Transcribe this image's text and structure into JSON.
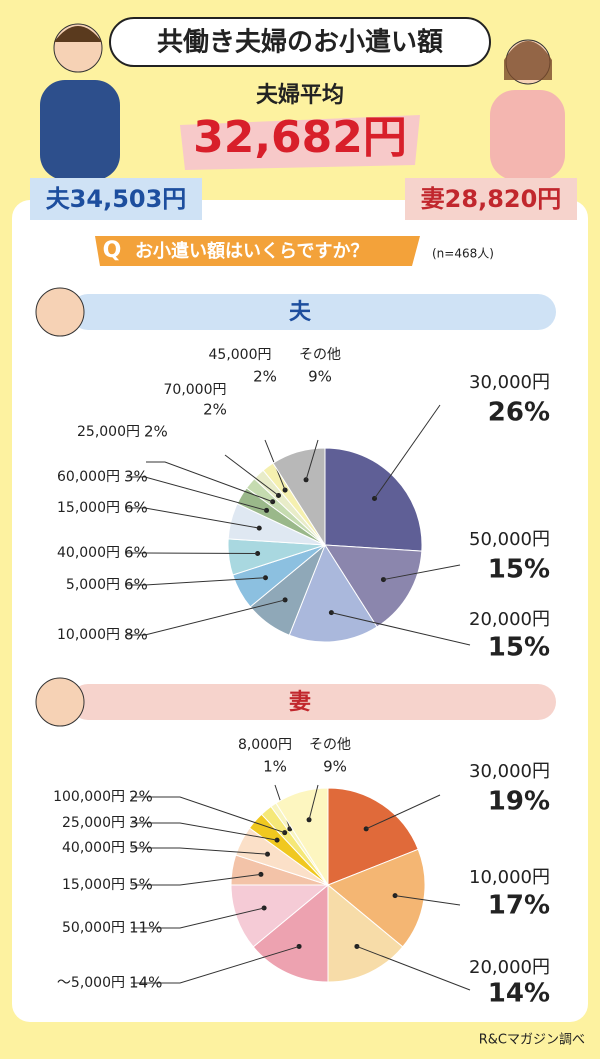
{
  "header": {
    "title": "共働き夫婦のお小遣い額",
    "subtitle": "夫婦平均",
    "average": "32,682円",
    "husband": "夫34,503円",
    "wife": "妻28,820円"
  },
  "question": {
    "mark": "Q",
    "text": "お小遣い額はいくらですか？",
    "n": "(n=468人)"
  },
  "chart_data": [
    {
      "type": "pie",
      "title": "夫",
      "categories": [
        "30,000円",
        "50,000円",
        "20,000円",
        "10,000円",
        "5,000円",
        "40,000円",
        "15,000円",
        "60,000円",
        "25,000円",
        "70,000円",
        "45,000円",
        "その他"
      ],
      "values": [
        26,
        15,
        15,
        8,
        6,
        6,
        6,
        3,
        2,
        2,
        2,
        9
      ],
      "value_labels": [
        "26%",
        "15%",
        "15%",
        "8%",
        "6%",
        "6%",
        "6%",
        "3%",
        "2%",
        "2%",
        "2%",
        "9%"
      ],
      "colors": [
        "#5f5f96",
        "#8b86ad",
        "#aab8dc",
        "#8fa8b8",
        "#8cc0e0",
        "#a9d8e0",
        "#dfe8f2",
        "#9ab88a",
        "#c5dbb0",
        "#e8ecc8",
        "#f5f0b0",
        "#b8b8b8"
      ]
    },
    {
      "type": "pie",
      "title": "妻",
      "categories": [
        "30,000円",
        "10,000円",
        "20,000円",
        "～5,000円",
        "50,000円",
        "15,000円",
        "40,000円",
        "25,000円",
        "100,000円",
        "8,000円",
        "その他"
      ],
      "values": [
        19,
        17,
        14,
        14,
        11,
        5,
        5,
        3,
        2,
        1,
        9
      ],
      "value_labels": [
        "19%",
        "17%",
        "14%",
        "14%",
        "11%",
        "5%",
        "5%",
        "3%",
        "2%",
        "1%",
        "9%"
      ],
      "colors": [
        "#e06a3a",
        "#f4b673",
        "#f7dca8",
        "#eda2b0",
        "#f5cbd6",
        "#f3c3a8",
        "#fbe0c8",
        "#f0c820",
        "#f5e878",
        "#f8f4c0",
        "#fdf6c0"
      ]
    }
  ],
  "source": "R&Cマガジン調べ"
}
